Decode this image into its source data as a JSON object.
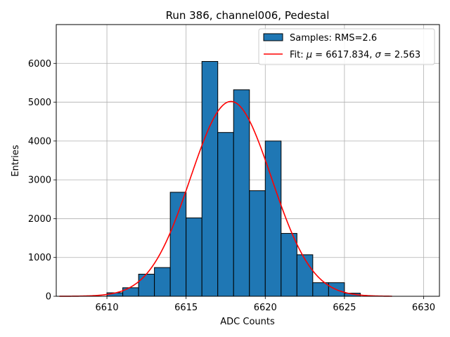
{
  "chart_data": {
    "type": "bar",
    "title": "Run 386, channel006, Pedestal",
    "xlabel": "ADC Counts",
    "ylabel": "Entries",
    "xlim": [
      6606.8,
      6631.0
    ],
    "ylim": [
      0,
      7000
    ],
    "xticks": [
      6610,
      6615,
      6620,
      6625,
      6630
    ],
    "yticks": [
      0,
      1000,
      2000,
      3000,
      4000,
      5000,
      6000
    ],
    "grid": true,
    "legend_position": "top-right",
    "colors": {
      "bar_fill": "#1f77b4",
      "bar_edge": "#000000",
      "fit_line": "#ff0000",
      "grid": "#b0b0b0"
    },
    "bins": {
      "left_edges": [
        6610,
        6611,
        6612,
        6613,
        6614,
        6615,
        6616,
        6617,
        6618,
        6619,
        6620,
        6621,
        6622,
        6623,
        6624,
        6625
      ],
      "width": 1,
      "counts": [
        90,
        220,
        570,
        740,
        2680,
        2020,
        6050,
        4220,
        5320,
        2720,
        4000,
        1620,
        1070,
        350,
        350,
        80
      ]
    },
    "series": [
      {
        "name": "Samples: RMS=2.6",
        "kind": "histogram"
      },
      {
        "name_prefix": "Fit: ",
        "mu_sym": "μ",
        "mu_rest": " = 6617.834, ",
        "sigma_sym": "σ",
        "sigma_rest": " = 2.563",
        "kind": "gaussian_fit",
        "mu": 6617.834,
        "sigma": 2.563,
        "amplitude": 5020,
        "x_range": [
          6607,
          6628
        ]
      }
    ]
  }
}
